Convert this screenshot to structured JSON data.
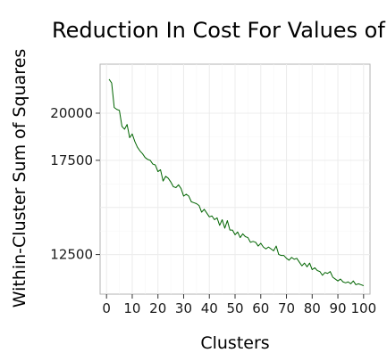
{
  "chart_data": {
    "type": "line",
    "title": "Reduction In Cost For Values of",
    "xlabel": "Clusters",
    "ylabel": "Within-Cluster Sum of Squares",
    "xlim": [
      -2.5,
      102.5
    ],
    "ylim": [
      10400,
      22600
    ],
    "x_ticks": [
      0,
      10,
      20,
      30,
      40,
      50,
      60,
      70,
      80,
      90,
      100
    ],
    "y_ticks": [
      12500,
      17500,
      20000
    ],
    "y_ticks_all": [
      12500,
      15000,
      17500,
      20000
    ],
    "grid": true,
    "line_color": "#006400",
    "series": [
      {
        "x": [
          1,
          2,
          3,
          4,
          5,
          6,
          7,
          8,
          9,
          10,
          11,
          12,
          13,
          14,
          15,
          16,
          17,
          18,
          19,
          20,
          21,
          22,
          23,
          24,
          25,
          26,
          27,
          28,
          29,
          30,
          31,
          32,
          33,
          34,
          35,
          36,
          37,
          38,
          39,
          40,
          41,
          42,
          43,
          44,
          45,
          46,
          47,
          48,
          49,
          50,
          51,
          52,
          53,
          54,
          55,
          56,
          57,
          58,
          59,
          60,
          61,
          62,
          63,
          64,
          65,
          66,
          67,
          68,
          69,
          70,
          71,
          72,
          73,
          74,
          75,
          76,
          77,
          78,
          79,
          80,
          81,
          82,
          83,
          84,
          85,
          86,
          87,
          88,
          89,
          90,
          91,
          92,
          93,
          94,
          95,
          96,
          97,
          98,
          99,
          100
        ],
        "values": [
          21800,
          21600,
          20300,
          20200,
          20150,
          19300,
          19150,
          19400,
          18700,
          18900,
          18500,
          18200,
          18000,
          17850,
          17650,
          17550,
          17500,
          17300,
          17250,
          16900,
          17000,
          16400,
          16650,
          16550,
          16350,
          16100,
          16050,
          16200,
          16000,
          15600,
          15700,
          15600,
          15300,
          15250,
          15200,
          15100,
          14750,
          14900,
          14700,
          14500,
          14550,
          14350,
          14450,
          14050,
          14350,
          13900,
          14300,
          13800,
          13800,
          13550,
          13700,
          13400,
          13600,
          13450,
          13400,
          13150,
          13200,
          13150,
          12950,
          13100,
          12900,
          12800,
          12900,
          12800,
          12700,
          12950,
          12500,
          12450,
          12450,
          12300,
          12200,
          12350,
          12250,
          12300,
          12100,
          11900,
          12050,
          11850,
          12050,
          11700,
          11800,
          11650,
          11600,
          11400,
          11550,
          11500,
          11600,
          11300,
          11200,
          11100,
          11200,
          11050,
          11000,
          11050,
          10950,
          11100,
          10900,
          10950,
          10900,
          10850
        ]
      }
    ]
  }
}
